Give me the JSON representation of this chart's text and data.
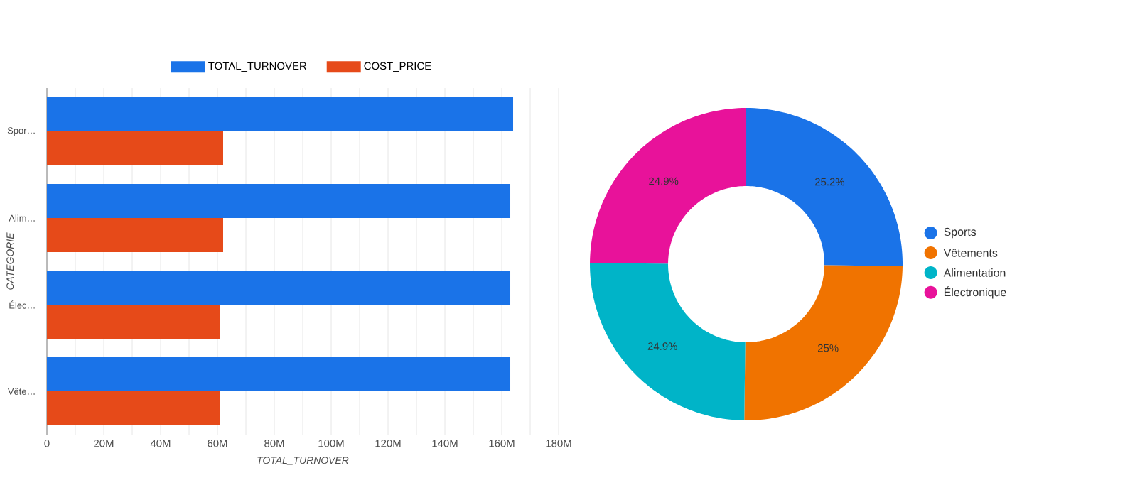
{
  "chart_data": [
    {
      "type": "bar",
      "orientation": "horizontal",
      "categories": [
        "Spor…",
        "Alim…",
        "Élec…",
        "Vête…"
      ],
      "series": [
        {
          "name": "TOTAL_TURNOVER",
          "color": "#1a73e8",
          "values": [
            164,
            163,
            163,
            163
          ]
        },
        {
          "name": "COST_PRICE",
          "color": "#e64a19",
          "values": [
            62,
            62,
            61,
            61
          ]
        }
      ],
      "xlabel": "TOTAL_TURNOVER",
      "ylabel": "CATEGORIE",
      "xlim": [
        0,
        180
      ],
      "xticks": [
        0,
        {
          "value": 20,
          "label": "20M"
        },
        {
          "value": 40,
          "label": "40M"
        },
        {
          "value": 60,
          "label": "60M"
        },
        {
          "value": 80,
          "label": "80M"
        },
        {
          "value": 100,
          "label": "100M"
        },
        {
          "value": 120,
          "label": "120M"
        },
        {
          "value": 140,
          "label": "140M"
        },
        {
          "value": 160,
          "label": "160M"
        },
        {
          "value": 180,
          "label": "180M"
        }
      ],
      "grid": "x",
      "legend": "top"
    },
    {
      "type": "donut",
      "categories": [
        "Sports",
        "Vêtements",
        "Alimentation",
        "Électronique"
      ],
      "values": [
        25.2,
        25,
        24.9,
        24.9
      ],
      "colors": [
        "#1a73e8",
        "#f07300",
        "#00b4c8",
        "#e8129a"
      ],
      "value_labels": [
        "25.2%",
        "25%",
        "24.9%",
        "24.9%"
      ],
      "legend": "right"
    }
  ]
}
